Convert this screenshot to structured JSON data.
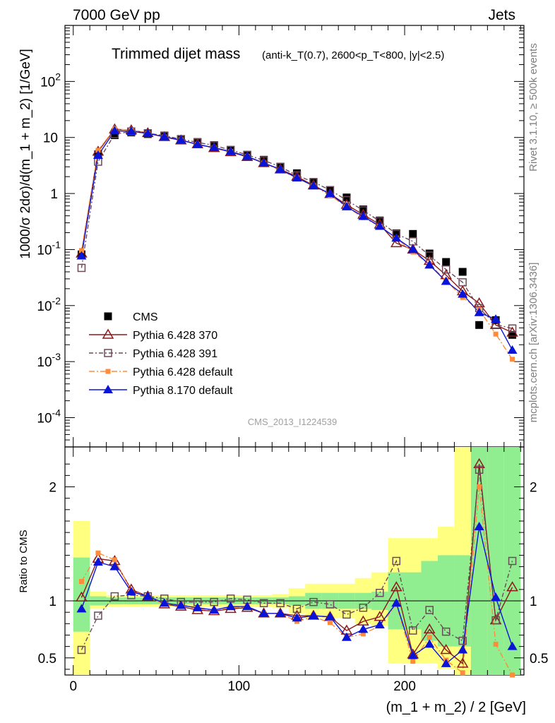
{
  "header": {
    "left": "7000 GeV pp",
    "right": "Jets"
  },
  "title": {
    "main": "Trimmed dijet mass",
    "detail": "(anti-k_T(0.7), 2600<p_T<800, |y|<2.5)"
  },
  "side_labels": {
    "rivet": "Rivet 3.1.10, ≥ 500k events",
    "mcplots": "mcplots.cern.ch [arXiv:1306.3436]"
  },
  "analysis_id": "CMS_2013_I1224539",
  "colors": {
    "cms": "#000000",
    "py370": "#8b1a1a",
    "py391": "#6b4a5a",
    "py6def": "#ff8c3a",
    "py8def": "#0a14d8",
    "band_green": "#90ee90",
    "band_yellow": "#ffff80"
  },
  "chart_data": [
    {
      "type": "scatter",
      "panel": "main",
      "yscale": "log",
      "xlabel": "",
      "ylabel": "1000/σ 2dσ)/d(m_1 + m_2) [1/GeV]",
      "xlim": [
        -5,
        272
      ],
      "ylim": [
        3e-05,
        1000
      ],
      "x": [
        5,
        15,
        25,
        35,
        45,
        55,
        65,
        75,
        85,
        95,
        105,
        115,
        125,
        135,
        145,
        155,
        165,
        175,
        185,
        195,
        205,
        215,
        225,
        235,
        245,
        255,
        265
      ],
      "legend": [
        "CMS",
        "Pythia 6.428 370",
        "Pythia 6.428 391",
        "Pythia 6.428 default",
        "Pythia 8.170 default"
      ],
      "legend_position": "bottom-left",
      "series": [
        {
          "name": "CMS",
          "key": "cms",
          "marker": "square-filled",
          "values": [
            0.082,
            5.0,
            11.0,
            12.3,
            11.5,
            10.5,
            9.4,
            8.3,
            7.3,
            6.0,
            4.9,
            4.0,
            3.0,
            2.3,
            1.6,
            1.15,
            0.85,
            0.52,
            0.33,
            0.195,
            0.19,
            0.085,
            0.06,
            0.04,
            0.0045,
            0.0055,
            0.003
          ]
        },
        {
          "name": "Pythia 6.428 370",
          "key": "py370",
          "marker": "triangle-open",
          "values": [
            0.085,
            5.6,
            14.0,
            13.5,
            12.0,
            10.2,
            8.9,
            7.6,
            6.5,
            5.5,
            4.5,
            3.5,
            2.7,
            2.0,
            1.4,
            0.98,
            0.63,
            0.42,
            0.28,
            0.13,
            0.1,
            0.063,
            0.035,
            0.018,
            0.011,
            0.0045,
            0.0033
          ]
        },
        {
          "name": "Pythia 6.428 391",
          "key": "py391",
          "marker": "square-open",
          "values": [
            0.047,
            3.7,
            11.5,
            12.8,
            11.9,
            10.8,
            9.3,
            8.2,
            7.2,
            6.0,
            4.9,
            3.9,
            3.0,
            2.1,
            1.6,
            1.15,
            0.76,
            0.5,
            0.32,
            0.19,
            0.14,
            0.078,
            0.044,
            0.026,
            0.009,
            0.0046,
            0.0039
          ]
        },
        {
          "name": "Pythia 6.428 default",
          "key": "py6def",
          "marker": "square-filled-small",
          "values": [
            0.096,
            5.9,
            14.3,
            13.4,
            11.9,
            10.2,
            9.1,
            7.5,
            6.5,
            5.6,
            4.6,
            3.5,
            2.6,
            1.9,
            1.38,
            0.93,
            0.58,
            0.37,
            0.26,
            0.16,
            0.09,
            0.055,
            0.028,
            0.014,
            0.0085,
            0.0031,
            0.0011
          ]
        },
        {
          "name": "Pythia 8.170 default",
          "key": "py8def",
          "marker": "triangle-filled",
          "values": [
            0.077,
            4.8,
            13.1,
            12.9,
            11.8,
            10.3,
            9.0,
            7.5,
            6.6,
            5.6,
            4.6,
            3.5,
            2.7,
            1.9,
            1.37,
            1.0,
            0.58,
            0.39,
            0.26,
            0.16,
            0.1,
            0.053,
            0.027,
            0.016,
            0.0075,
            0.0057,
            0.0016
          ]
        }
      ]
    },
    {
      "type": "scatter",
      "panel": "ratio",
      "xlabel": "(m_1 + m_2) / 2 [GeV]",
      "ylabel": "Ratio to CMS",
      "xlim": [
        -5,
        272
      ],
      "ylim": [
        0.35,
        2.35
      ],
      "xticks": [
        0,
        100,
        200
      ],
      "yticks": [
        0.5,
        1,
        2
      ],
      "x": [
        5,
        15,
        25,
        35,
        45,
        55,
        65,
        75,
        85,
        95,
        105,
        115,
        125,
        135,
        145,
        155,
        165,
        175,
        185,
        195,
        205,
        215,
        225,
        235,
        245,
        255,
        265
      ],
      "bands": {
        "green": [
          [
            0.73,
            1.38
          ],
          [
            0.96,
            1.04
          ],
          [
            0.97,
            1.03
          ],
          [
            0.97,
            1.03
          ],
          [
            0.97,
            1.03
          ],
          [
            0.97,
            1.03
          ],
          [
            0.97,
            1.03
          ],
          [
            0.97,
            1.03
          ],
          [
            0.97,
            1.03
          ],
          [
            0.97,
            1.03
          ],
          [
            0.97,
            1.03
          ],
          [
            0.97,
            1.03
          ],
          [
            0.97,
            1.03
          ],
          [
            0.96,
            1.04
          ],
          [
            0.93,
            1.07
          ],
          [
            0.93,
            1.07
          ],
          [
            0.93,
            1.07
          ],
          [
            0.93,
            1.07
          ],
          [
            0.92,
            1.08
          ],
          [
            0.75,
            1.25
          ],
          [
            0.75,
            1.25
          ],
          [
            0.65,
            1.35
          ],
          [
            0.6,
            1.4
          ],
          [
            0.6,
            1.4
          ],
          [
            0.35,
            2.35
          ],
          [
            0.35,
            2.35
          ],
          [
            0.35,
            2.35
          ]
        ],
        "yellow": [
          [
            0.35,
            1.7
          ],
          [
            0.93,
            1.08
          ],
          [
            0.95,
            1.05
          ],
          [
            0.95,
            1.05
          ],
          [
            0.95,
            1.05
          ],
          [
            0.95,
            1.05
          ],
          [
            0.95,
            1.05
          ],
          [
            0.95,
            1.05
          ],
          [
            0.95,
            1.05
          ],
          [
            0.95,
            1.05
          ],
          [
            0.95,
            1.05
          ],
          [
            0.95,
            1.05
          ],
          [
            0.94,
            1.06
          ],
          [
            0.89,
            1.11
          ],
          [
            0.85,
            1.15
          ],
          [
            0.85,
            1.15
          ],
          [
            0.85,
            1.15
          ],
          [
            0.8,
            1.2
          ],
          [
            0.78,
            1.25
          ],
          [
            0.45,
            1.55
          ],
          [
            0.45,
            1.55
          ],
          [
            0.45,
            1.55
          ],
          [
            0.4,
            1.65
          ],
          [
            0.35,
            2.35
          ],
          [
            0.35,
            2.35
          ],
          [
            0.35,
            2.35
          ],
          [
            0.35,
            2.35
          ]
        ]
      },
      "series": [
        {
          "name": "Pythia 6.428 370",
          "key": "py370",
          "values": [
            1.03,
            1.37,
            1.35,
            1.1,
            1.04,
            0.97,
            0.95,
            0.92,
            0.91,
            0.93,
            0.94,
            0.89,
            0.89,
            0.87,
            0.87,
            0.86,
            0.74,
            0.82,
            0.86,
            1.12,
            0.53,
            0.75,
            0.57,
            0.45,
            2.2,
            0.83,
            1.12
          ]
        },
        {
          "name": "Pythia 6.428 391",
          "key": "py391",
          "values": [
            0.57,
            0.87,
            1.04,
            1.05,
            1.04,
            1.02,
            0.99,
            0.99,
            0.99,
            1.02,
            1.01,
            0.98,
            0.98,
            0.93,
            0.99,
            0.97,
            0.88,
            0.94,
            1.07,
            1.35,
            0.74,
            0.92,
            0.73,
            0.65,
            2.15,
            0.83,
            1.35
          ]
        },
        {
          "name": "Pythia 6.428 default",
          "key": "py6def",
          "values": [
            1.17,
            1.42,
            1.36,
            1.09,
            1.04,
            0.97,
            0.97,
            0.93,
            0.92,
            0.94,
            0.95,
            0.89,
            0.89,
            0.82,
            0.86,
            0.81,
            0.68,
            0.71,
            0.78,
            0.97,
            0.47,
            0.68,
            0.48,
            0.37,
            2.0,
            0.62,
            0.35
          ]
        },
        {
          "name": "Pythia 8.170 default",
          "key": "py8def",
          "values": [
            0.93,
            1.34,
            1.3,
            1.08,
            1.04,
            0.98,
            0.96,
            0.94,
            0.92,
            0.95,
            0.95,
            0.89,
            0.89,
            0.85,
            0.87,
            0.86,
            0.68,
            0.75,
            0.79,
            0.98,
            0.52,
            0.62,
            0.45,
            0.57,
            1.65,
            1.03,
            0.6
          ]
        }
      ]
    }
  ]
}
